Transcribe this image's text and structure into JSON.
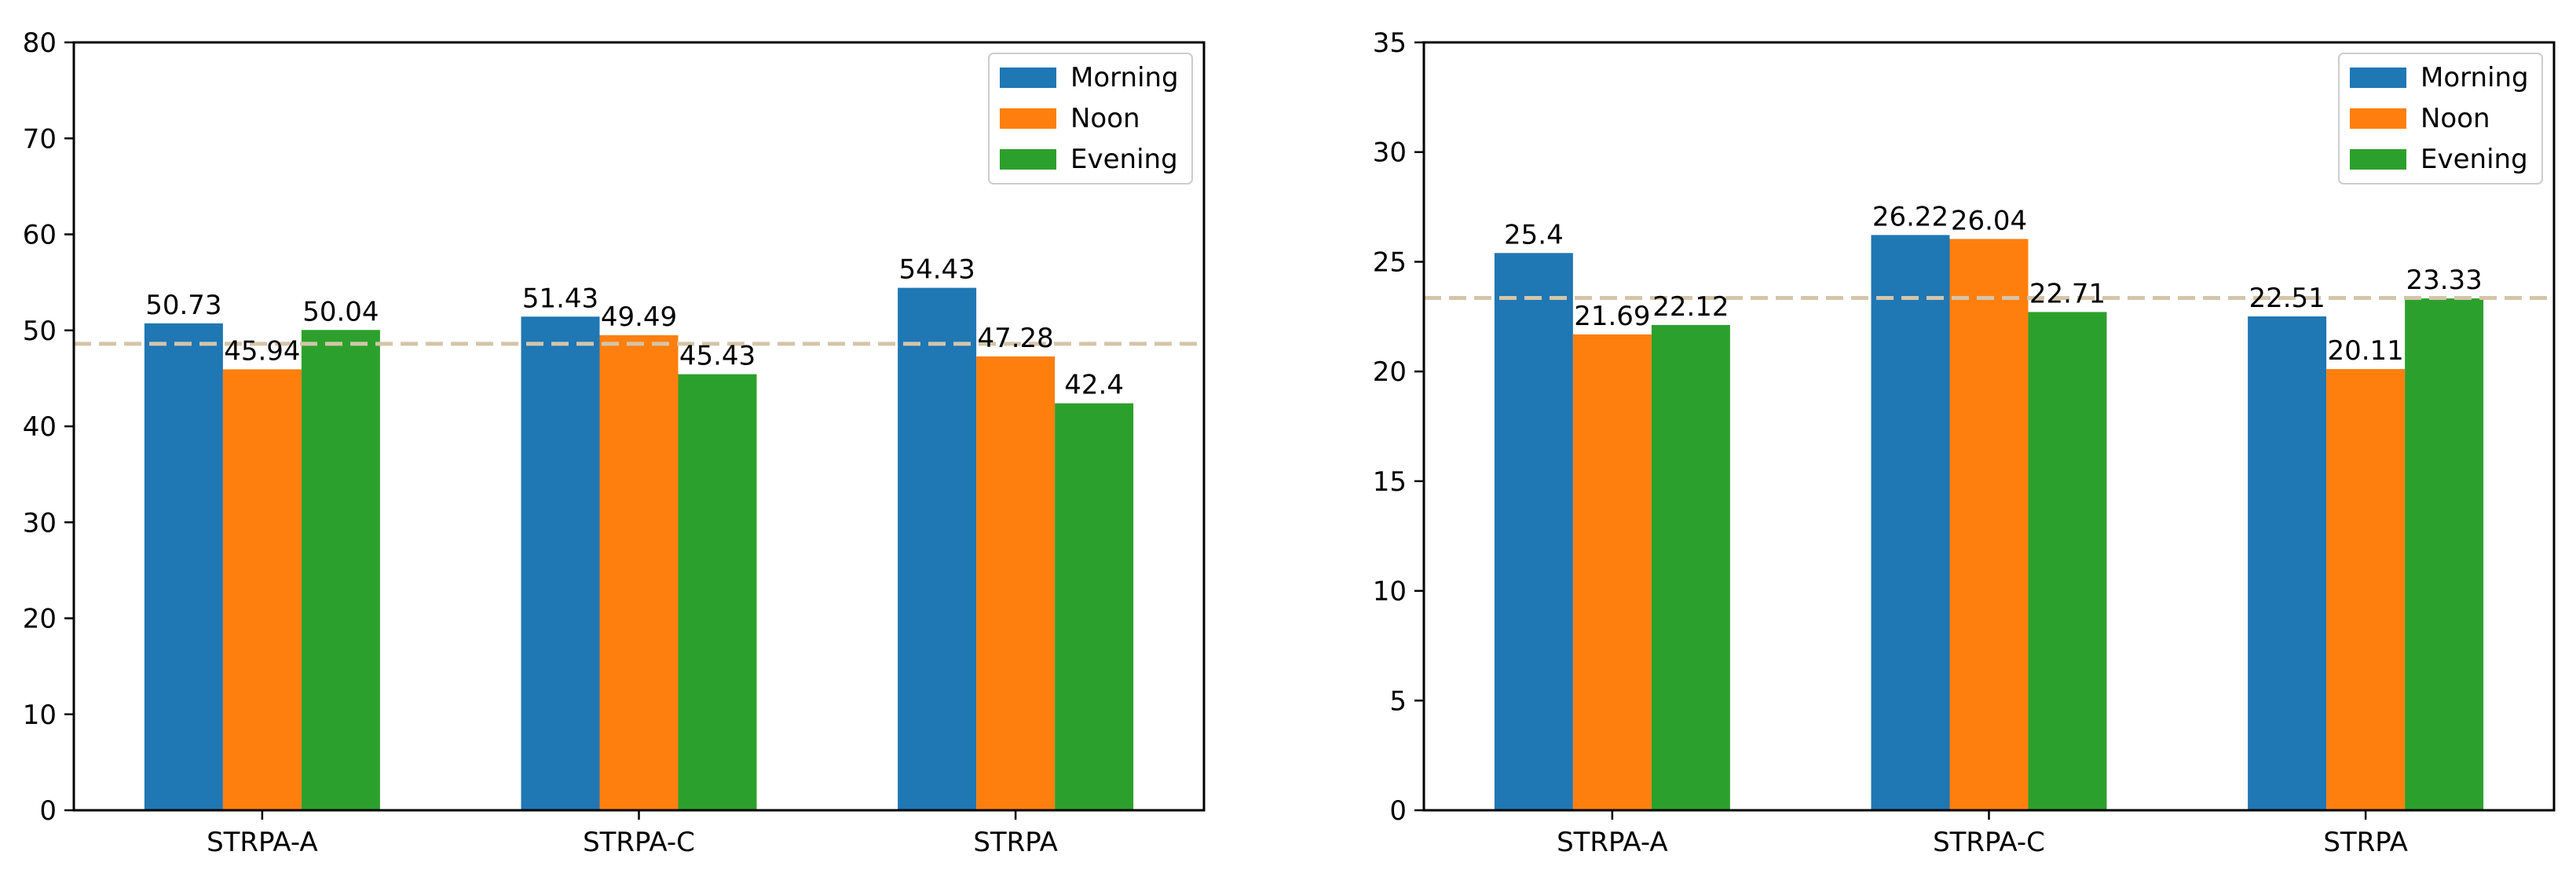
{
  "chart_data": [
    {
      "type": "bar",
      "title": "",
      "xlabel": "",
      "ylabel": "",
      "categories": [
        "STRPA-A",
        "STRPA-C",
        "STRPA"
      ],
      "series": [
        {
          "name": "Morning",
          "values": [
            50.73,
            51.43,
            54.43
          ],
          "labels": [
            "50.73",
            "51.43",
            "54.43"
          ],
          "color": "#1f77b4"
        },
        {
          "name": "Noon",
          "values": [
            45.94,
            49.49,
            47.28
          ],
          "labels": [
            "45.94",
            "49.49",
            "47.28"
          ],
          "color": "#ff7f0e"
        },
        {
          "name": "Evening",
          "values": [
            50.04,
            45.43,
            42.4
          ],
          "labels": [
            "50.04",
            "45.43",
            "42.4"
          ],
          "color": "#2ca02c"
        }
      ],
      "ylim": [
        0,
        80
      ],
      "yticks": [
        0,
        10,
        20,
        30,
        40,
        50,
        60,
        70,
        80
      ],
      "reference_line": {
        "value": 48.6,
        "style": "dashed",
        "color": "#d4c5a9"
      },
      "legend_position": "top-right",
      "grid": false
    },
    {
      "type": "bar",
      "title": "",
      "xlabel": "",
      "ylabel": "",
      "categories": [
        "STRPA-A",
        "STRPA-C",
        "STRPA"
      ],
      "series": [
        {
          "name": "Morning",
          "values": [
            25.4,
            26.22,
            22.51
          ],
          "labels": [
            "25.4",
            "26.22",
            "22.51"
          ],
          "color": "#1f77b4"
        },
        {
          "name": "Noon",
          "values": [
            21.69,
            26.04,
            20.11
          ],
          "labels": [
            "21.69",
            "26.04",
            "20.11"
          ],
          "color": "#ff7f0e"
        },
        {
          "name": "Evening",
          "values": [
            22.12,
            22.71,
            23.33
          ],
          "labels": [
            "22.12",
            "22.71",
            "23.33"
          ],
          "color": "#2ca02c"
        }
      ],
      "ylim": [
        0,
        35
      ],
      "yticks": [
        0,
        5,
        10,
        15,
        20,
        25,
        30,
        35
      ],
      "reference_line": {
        "value": 23.35,
        "style": "dashed",
        "color": "#d4c5a9"
      },
      "legend_position": "top-right",
      "grid": false
    }
  ]
}
